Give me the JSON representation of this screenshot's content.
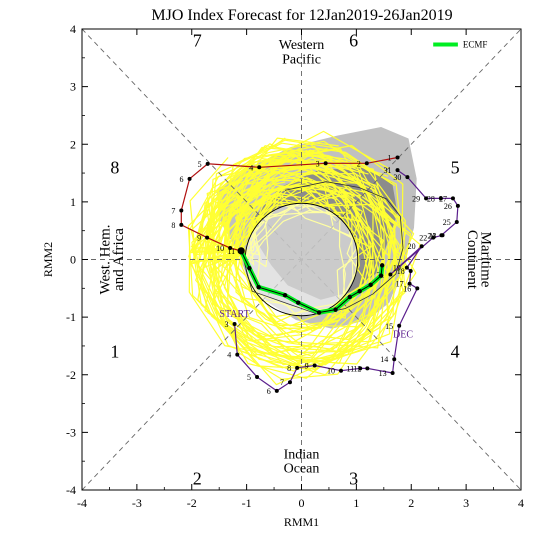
{
  "chart_data": {
    "type": "line",
    "title": "MJO Index Forecast for 12Jan2019-26Jan2019",
    "xlabel": "RMM1",
    "ylabel": "RMM2",
    "xlim": [
      -4,
      4
    ],
    "ylim": [
      -4,
      4
    ],
    "xticks": [
      -4,
      -3,
      -2,
      -1,
      0,
      1,
      2,
      3,
      4
    ],
    "yticks": [
      -4,
      -3,
      -2,
      -1,
      0,
      1,
      2,
      3,
      4
    ],
    "grid": false,
    "legend": {
      "position": "top-right",
      "entries": [
        "ECMF"
      ]
    },
    "phase_numbers": [
      "1",
      "2",
      "3",
      "4",
      "5",
      "6",
      "7",
      "8"
    ],
    "region_labels": {
      "top": [
        "Western",
        "Pacific"
      ],
      "bottom": [
        "Indian",
        "Ocean"
      ],
      "left": [
        "West. Hem.",
        "and Africa"
      ],
      "right": [
        "Maritime",
        "Continent"
      ]
    },
    "annotations": {
      "start": "START",
      "dec": "DEC"
    },
    "colors": {
      "observed_dec": "#5a1e8c",
      "observed_jan": "#b01010",
      "ensemble_mean": "#00ee22",
      "members": "#ffff33",
      "spread_outer": "#c0c0c0",
      "spread_inner": "#8c8c8c"
    },
    "observed_december": [
      {
        "day": "3",
        "x": -1.22,
        "y": -1.12
      },
      {
        "day": "4",
        "x": -1.17,
        "y": -1.65
      },
      {
        "day": "5",
        "x": -0.81,
        "y": -2.04
      },
      {
        "day": "6",
        "x": -0.45,
        "y": -2.28
      },
      {
        "day": "7",
        "x": -0.21,
        "y": -2.13
      },
      {
        "day": "8",
        "x": -0.08,
        "y": -1.88
      },
      {
        "day": "9",
        "x": 0.24,
        "y": -1.84
      },
      {
        "day": "10",
        "x": 0.72,
        "y": -1.93
      },
      {
        "day": "11",
        "x": 1.07,
        "y": -1.89
      },
      {
        "day": "12",
        "x": 1.2,
        "y": -1.89
      },
      {
        "day": "13",
        "x": 1.66,
        "y": -1.97
      },
      {
        "day": "14",
        "x": 1.69,
        "y": -1.73
      },
      {
        "day": "15",
        "x": 1.78,
        "y": -1.15
      },
      {
        "day": "16",
        "x": 2.11,
        "y": -0.5
      },
      {
        "day": "17",
        "x": 1.97,
        "y": -0.42
      },
      {
        "day": "18",
        "x": 1.99,
        "y": -0.2
      },
      {
        "day": "19",
        "x": 1.92,
        "y": -0.14
      },
      {
        "day": "20",
        "x": 2.19,
        "y": 0.23
      },
      {
        "day": "21",
        "x": 1.62,
        "y": -0.26
      },
      {
        "day": "22",
        "x": 2.4,
        "y": 0.38
      },
      {
        "day": "23",
        "x": 2.57,
        "y": 0.42
      },
      {
        "day": "24",
        "x": 2.55,
        "y": 0.42
      },
      {
        "day": "25",
        "x": 2.83,
        "y": 0.65
      },
      {
        "day": "26",
        "x": 2.85,
        "y": 0.93
      },
      {
        "day": "27",
        "x": 2.76,
        "y": 1.06
      },
      {
        "day": "28",
        "x": 2.54,
        "y": 1.06
      },
      {
        "day": "29",
        "x": 2.27,
        "y": 1.06
      },
      {
        "day": "30",
        "x": 1.93,
        "y": 1.43
      },
      {
        "day": "31",
        "x": 1.75,
        "y": 1.55
      }
    ],
    "observed_january": [
      {
        "day": "1",
        "x": 1.75,
        "y": 1.77
      },
      {
        "day": "2",
        "x": 1.19,
        "y": 1.67
      },
      {
        "day": "3",
        "x": 0.44,
        "y": 1.67
      },
      {
        "day": "4",
        "x": -0.77,
        "y": 1.6
      },
      {
        "day": "5",
        "x": -1.71,
        "y": 1.66
      },
      {
        "day": "6",
        "x": -2.04,
        "y": 1.4
      },
      {
        "day": "7",
        "x": -2.19,
        "y": 0.85
      },
      {
        "day": "8",
        "x": -2.19,
        "y": 0.6
      },
      {
        "day": "9",
        "x": -1.72,
        "y": 0.38
      },
      {
        "day": "10",
        "x": -1.3,
        "y": 0.2
      },
      {
        "day": "11",
        "x": -1.1,
        "y": 0.15
      }
    ],
    "series": [
      {
        "name": "ECMF",
        "x": [
          -1.1,
          -0.95,
          -0.78,
          -0.3,
          -0.06,
          0.32,
          0.62,
          0.88,
          1.06,
          1.26,
          1.45,
          1.47
        ],
        "y": [
          0.15,
          -0.15,
          -0.48,
          -0.62,
          -0.75,
          -0.92,
          -0.87,
          -0.65,
          -0.55,
          -0.44,
          -0.28,
          -0.1
        ]
      }
    ],
    "outer_band_line": [
      [
        -1.1,
        0.15
      ],
      [
        -0.9,
        -0.55
      ],
      [
        -0.3,
        -0.75
      ],
      [
        0.3,
        -0.95
      ],
      [
        0.8,
        -0.85
      ],
      [
        1.3,
        -0.6
      ],
      [
        1.72,
        -0.25
      ],
      [
        1.85,
        0.2
      ],
      [
        1.8,
        0.75
      ],
      [
        1.55,
        1.05
      ],
      [
        1.05,
        1.25
      ],
      [
        0.45,
        1.35
      ],
      [
        -0.3,
        1.2
      ]
    ]
  }
}
